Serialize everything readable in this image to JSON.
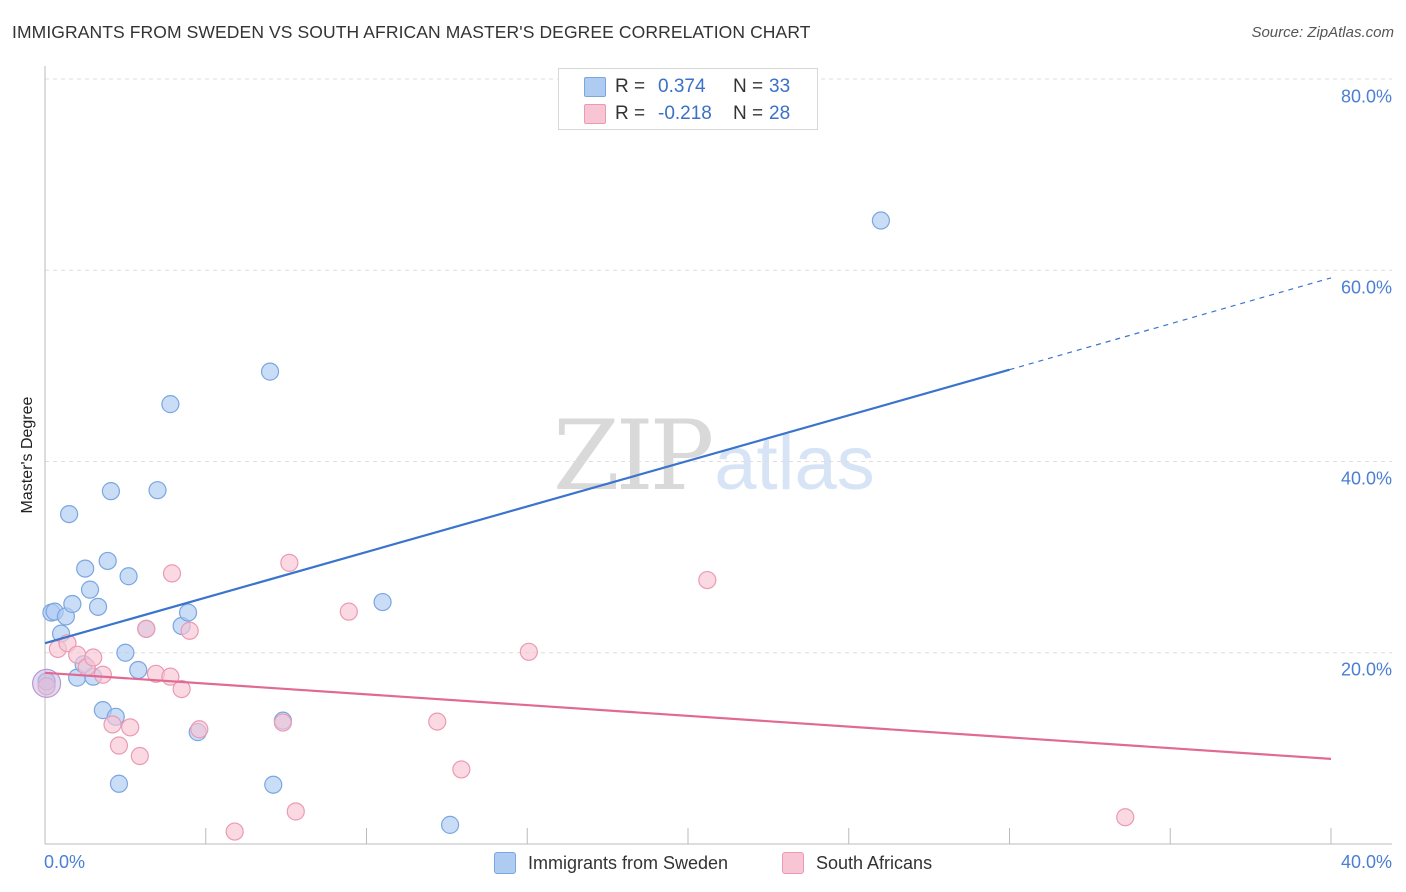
{
  "header": {
    "title": "IMMIGRANTS FROM SWEDEN VS SOUTH AFRICAN MASTER'S DEGREE CORRELATION CHART",
    "source": "Source: ZipAtlas.com"
  },
  "watermark": {
    "zip": "ZIP",
    "atlas": "atlas"
  },
  "legend_top": {
    "rows": [
      {
        "r_label": "R =",
        "r_value": "0.374",
        "n_label": "N =",
        "n_value": "33",
        "color": "#aecbf2",
        "border": "#7ba6e0"
      },
      {
        "r_label": "R =",
        "r_value": "-0.218",
        "n_label": "N =",
        "n_value": "28",
        "color": "#f8c5d4",
        "border": "#ec9ab3"
      }
    ]
  },
  "legend_bottom": {
    "items": [
      {
        "label": "Immigrants from Sweden",
        "color": "#aecbf2",
        "border": "#7ba6e0"
      },
      {
        "label": "South Africans",
        "color": "#f8c5d4",
        "border": "#ec9ab3"
      }
    ]
  },
  "chart_data": {
    "type": "scatter",
    "title": "IMMIGRANTS FROM SWEDEN VS SOUTH AFRICAN MASTER'S DEGREE CORRELATION CHART",
    "xlabel": "",
    "ylabel": "Master's Degree",
    "xlim": [
      0,
      40
    ],
    "ylim": [
      0,
      80
    ],
    "x_ticks": [
      "0.0%",
      "40.0%"
    ],
    "y_ticks": [
      "20.0%",
      "40.0%",
      "60.0%",
      "80.0%"
    ],
    "y_tick_values": [
      20,
      40,
      60,
      80
    ],
    "grid": true,
    "legend_placement": "top-center",
    "series": [
      {
        "name": "Immigrants from Sweden",
        "color": "#7ba6e0",
        "fill": "#aecbf2",
        "line_color": "#3a74cc",
        "r": 0.374,
        "n": 33,
        "trend": {
          "x0": 0,
          "y0": 21.0,
          "x1": 30.0,
          "y1": 49.6,
          "dash_to_x": 40.0,
          "dash_to_y": 59.2
        },
        "points": [
          [
            0.05,
            17.0
          ],
          [
            0.2,
            24.2
          ],
          [
            0.3,
            24.3
          ],
          [
            0.5,
            22.0
          ],
          [
            0.65,
            23.8
          ],
          [
            0.75,
            34.5
          ],
          [
            0.85,
            25.1
          ],
          [
            1.25,
            28.8
          ],
          [
            1.4,
            26.6
          ],
          [
            1.65,
            24.8
          ],
          [
            1.0,
            17.4
          ],
          [
            1.2,
            18.8
          ],
          [
            1.5,
            17.5
          ],
          [
            1.8,
            14.0
          ],
          [
            1.95,
            29.6
          ],
          [
            2.05,
            36.9
          ],
          [
            2.2,
            13.3
          ],
          [
            2.3,
            6.3
          ],
          [
            2.5,
            20.0
          ],
          [
            2.6,
            28.0
          ],
          [
            2.9,
            18.2
          ],
          [
            3.15,
            22.5
          ],
          [
            3.5,
            37.0
          ],
          [
            3.9,
            46.0
          ],
          [
            4.25,
            22.8
          ],
          [
            4.45,
            24.2
          ],
          [
            4.75,
            11.7
          ],
          [
            7.0,
            49.4
          ],
          [
            7.1,
            6.2
          ],
          [
            7.4,
            12.9
          ],
          [
            10.5,
            25.3
          ],
          [
            12.6,
            2.0
          ],
          [
            26.0,
            65.2
          ]
        ]
      },
      {
        "name": "South Africans",
        "color": "#ec9ab3",
        "fill": "#f8c5d4",
        "line_color": "#e06a93",
        "r": -0.218,
        "n": 28,
        "trend": {
          "x0": 0,
          "y0": 17.9,
          "x1": 40.0,
          "y1": 8.9
        },
        "points": [
          [
            0.05,
            16.5
          ],
          [
            0.4,
            20.4
          ],
          [
            0.7,
            21.0
          ],
          [
            1.0,
            19.8
          ],
          [
            1.3,
            18.5
          ],
          [
            1.5,
            19.5
          ],
          [
            1.8,
            17.7
          ],
          [
            2.1,
            12.5
          ],
          [
            2.3,
            10.3
          ],
          [
            2.65,
            12.2
          ],
          [
            2.95,
            9.2
          ],
          [
            3.15,
            22.5
          ],
          [
            3.45,
            17.8
          ],
          [
            3.9,
            17.5
          ],
          [
            3.95,
            28.3
          ],
          [
            4.25,
            16.2
          ],
          [
            4.5,
            22.3
          ],
          [
            4.8,
            12.0
          ],
          [
            5.9,
            1.3
          ],
          [
            7.4,
            12.7
          ],
          [
            7.6,
            29.4
          ],
          [
            7.8,
            3.4
          ],
          [
            9.45,
            24.3
          ],
          [
            12.2,
            12.8
          ],
          [
            12.95,
            7.8
          ],
          [
            15.05,
            20.1
          ],
          [
            20.6,
            27.6
          ],
          [
            33.6,
            2.8
          ]
        ]
      }
    ]
  }
}
